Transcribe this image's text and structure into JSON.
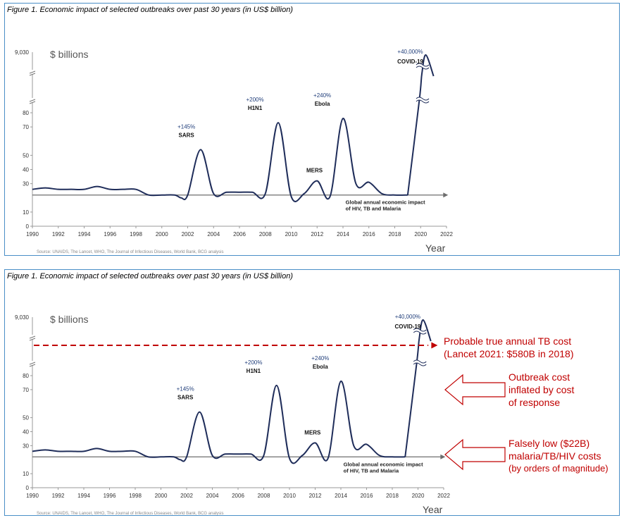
{
  "figure_title": "Figure 1. Economic impact of selected outbreaks over past 30 years (in US$ billion)",
  "units_label": "$ billions",
  "xlabel": "Year",
  "source": "Source: UNAIDS, The Lancet, WHO, The Journal of Infectious Diseases, World Bank, BCG analysis",
  "baseline_label": [
    "Global annual economic impact",
    "of HIV, TB and Malaria"
  ],
  "colors": {
    "line": "#1f2d5a",
    "baseline": "#6d6d6d",
    "red": "#c00000",
    "frame": "#4a8fc7"
  },
  "annotations": {
    "tb_cost": [
      "Probable true annual TB cost",
      "(Lancet 2021: $580B in 2018)"
    ],
    "inflated": [
      "Outbreak cost",
      "inflated by cost",
      "of response"
    ],
    "low": [
      "Falsely low ($22B)",
      "malaria/TB/HIV costs",
      "(by orders of magnitude)"
    ]
  },
  "chart_data": {
    "type": "line",
    "xlim": [
      1990,
      2022
    ],
    "x_ticks": [
      1990,
      1992,
      1994,
      1996,
      1998,
      2000,
      2002,
      2004,
      2006,
      2008,
      2010,
      2012,
      2014,
      2016,
      2018,
      2020,
      2022
    ],
    "y_ticks": [
      0,
      10,
      30,
      40,
      50,
      70,
      80
    ],
    "y_top_label": "9,030",
    "axis_break": true,
    "baseline_value": 22,
    "series": {
      "x": [
        1990,
        1991,
        1992,
        1993,
        1994,
        1995,
        1996,
        1997,
        1998,
        1999,
        2000,
        2001,
        2001.5,
        2002,
        2003,
        2004,
        2005,
        2006,
        2007,
        2008,
        2009,
        2010,
        2011,
        2012,
        2013,
        2014,
        2015,
        2016,
        2017,
        2018,
        2019
      ],
      "y": [
        26,
        27,
        26,
        26,
        26,
        28,
        26,
        26,
        26,
        22,
        22,
        22,
        20,
        22,
        54,
        23,
        24,
        24,
        24,
        23,
        73,
        21,
        23,
        32,
        21,
        76,
        30,
        31,
        23,
        22,
        22
      ]
    },
    "covid_segment": {
      "x": [
        2019,
        2020,
        2020.5,
        2021
      ],
      "label": "COVID-19",
      "pct": "+40,000%",
      "peak_value": 9030
    },
    "outbreaks": [
      {
        "name": "SARS",
        "pct": "+145%",
        "x": 2003,
        "value": 54
      },
      {
        "name": "H1N1",
        "pct": "+200%",
        "x": 2009,
        "value": 73
      },
      {
        "name": "MERS",
        "pct": "",
        "x": 2012,
        "value": 32
      },
      {
        "name": "Ebola",
        "pct": "+240%",
        "x": 2014,
        "value": 76
      }
    ],
    "reference_line": {
      "value": 580,
      "label": "Probable true annual TB cost"
    }
  }
}
